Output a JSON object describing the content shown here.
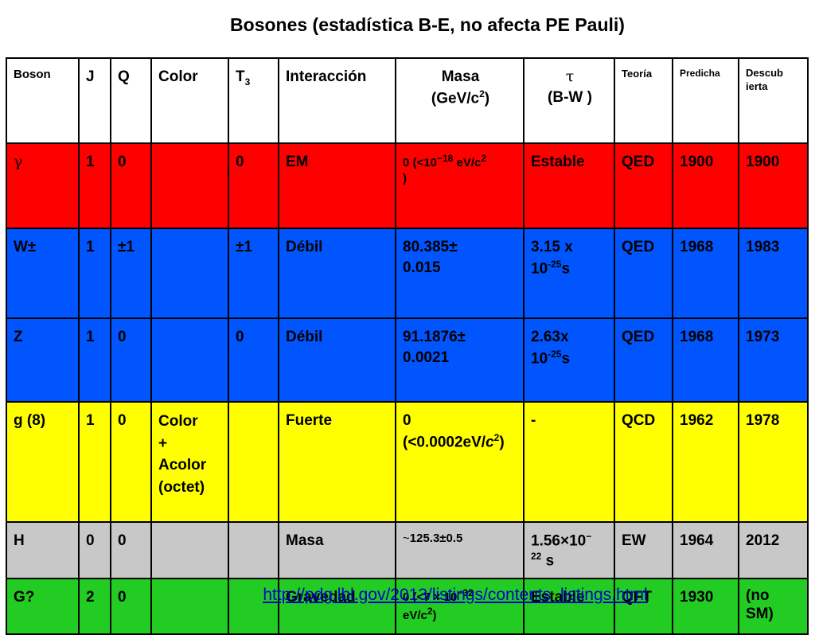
{
  "title": {
    "main": "Bosones (estadística B-E, no afecta PE Pauli)"
  },
  "header": {
    "boson": "Boson",
    "j": "J",
    "q": "Q",
    "color": "Color",
    "t3_base": "T",
    "t3_sub": "3",
    "interaccion": "Interacción",
    "masa_line1": "Masa",
    "masa_line2_a": "(GeV/c",
    "masa_line2_sup": "2",
    "masa_line2_b": ")",
    "tau_symbol": "τ",
    "tau_line2": "(B-W )",
    "teoria": "Teoría",
    "predicha": "Predicha",
    "descubierta_1": "Descub",
    "descubierta_2": "ierta"
  },
  "rows": {
    "gamma": {
      "boson": "γ",
      "j": "1",
      "q": "0",
      "color": "",
      "t3": "0",
      "interaccion": "EM",
      "masa_a": "0 (<10",
      "masa_sup": "−18",
      "masa_b": " eV/c",
      "masa_sup2": "2",
      "masa_c": " )",
      "tau": "Estable",
      "teoria": "QED",
      "predicha": "1900",
      "descubierta": "1900"
    },
    "w": {
      "boson": "W±",
      "j": "1",
      "q": "±1",
      "color": "",
      "t3": "±1",
      "interaccion": "Débil",
      "masa_1": "80.385±",
      "masa_2": "0.015",
      "tau_a": "3.15 x",
      "tau_b": "10",
      "tau_sup": "-25",
      "tau_c": "s",
      "teoria": "QED",
      "predicha": "1968",
      "descubierta": "1983"
    },
    "z": {
      "boson": "Z",
      "j": "1",
      "q": "0",
      "color": "",
      "t3": "0",
      "interaccion": "Débil",
      "masa_1": "91.1876±",
      "masa_2": "0.0021",
      "tau_a": "2.63x",
      "tau_b": "10",
      "tau_sup": "-25",
      "tau_c": "s",
      "teoria": "QED",
      "predicha": "1968",
      "descubierta": "1973"
    },
    "g": {
      "boson": "g (8)",
      "j": "1",
      "q": "0",
      "color_1": "Color",
      "color_2": "+",
      "color_3": "Acolor",
      "color_4": "(octet)",
      "t3": "",
      "interaccion": "Fuerte",
      "masa_1": "0",
      "masa_2a": "(<0.0002eV/",
      "masa_2b": "c",
      "masa_sup": "2",
      "masa_2c": ")",
      "tau": "-",
      "teoria": "QCD",
      "predicha": "1962",
      "descubierta": "1978"
    },
    "h": {
      "boson": "H",
      "j": "0",
      "q": "0",
      "color": "",
      "t3": "",
      "interaccion": "Masa",
      "masa_tilde": "~",
      "masa": "125.3±0.5",
      "tau_a": "1.56×10",
      "tau_sup1": "−",
      "tau_sup2": "22",
      "tau_b": " s",
      "teoria": "EW",
      "predicha": "1964",
      "descubierta": "2012"
    },
    "grav": {
      "boson": "G?",
      "j": "2",
      "q": "0",
      "color": "",
      "t3": "",
      "interaccion": "Gravedad",
      "masa_a": "0 (<7 × 10",
      "masa_sup": "−32",
      "masa_b": "eV/c",
      "masa_sup2": "2",
      "masa_c": ")",
      "tau": "Estable",
      "teoria": "QFT",
      "predicha": "1930",
      "descubierta_1": "(no",
      "descubierta_2": "SM)"
    }
  },
  "footer": {
    "link": "http://pdg.lbl.gov/2013/listings/contents_listings.html"
  },
  "colors": {
    "gamma": "#ff0000",
    "w": "#0055ff",
    "z": "#0055ff",
    "g": "#ffff00",
    "h": "#c8c8c8",
    "grav": "#22cc22"
  }
}
